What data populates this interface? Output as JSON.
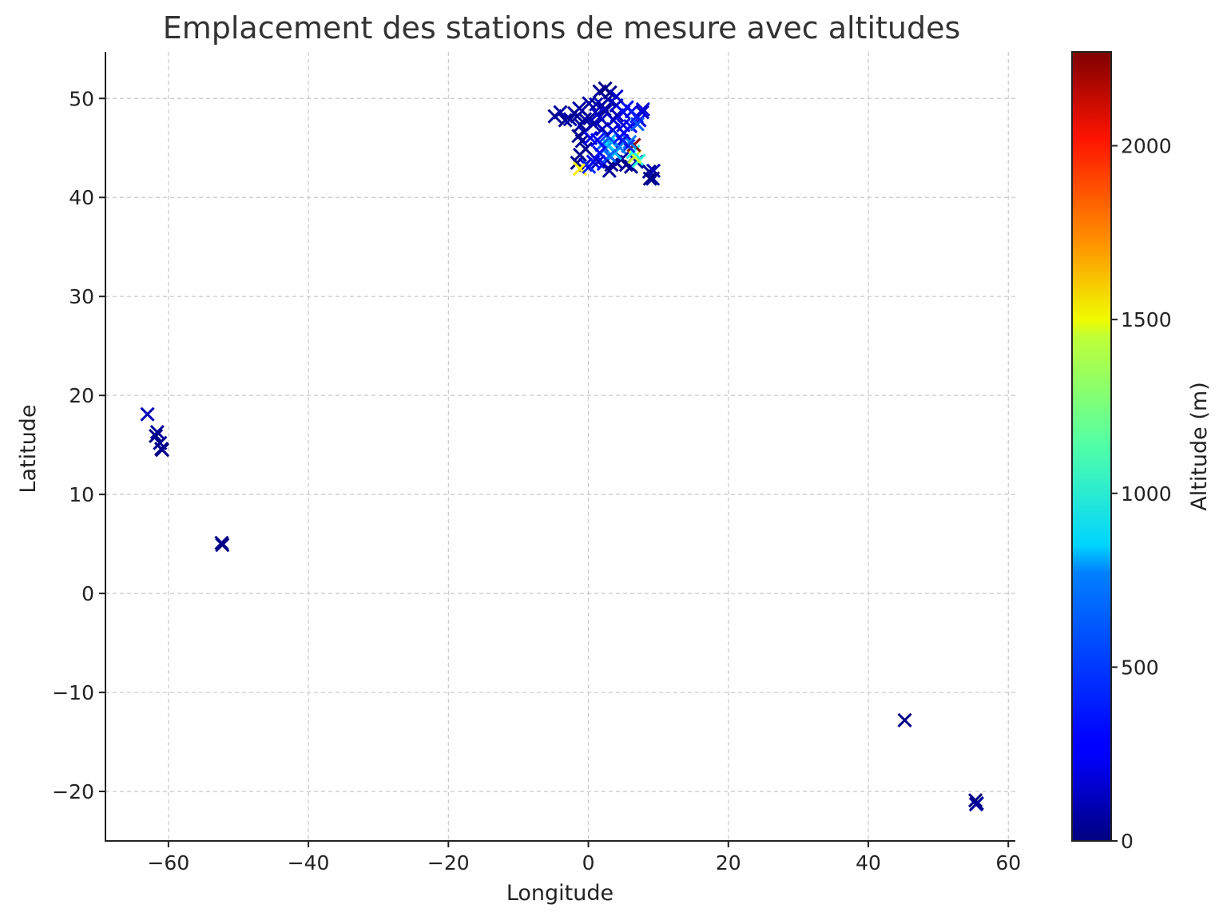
{
  "chart_data": {
    "type": "scatter",
    "title": "Emplacement des stations de mesure avec altitudes",
    "xlabel": "Longitude",
    "ylabel": "Latitude",
    "xlim": [
      -69,
      61
    ],
    "ylim": [
      -25,
      54.7
    ],
    "xticks": [
      -60,
      -40,
      -20,
      0,
      20,
      40,
      60
    ],
    "xtick_labels": [
      "−60",
      "−40",
      "−20",
      "0",
      "20",
      "40",
      "60"
    ],
    "yticks": [
      -20,
      -10,
      0,
      10,
      20,
      30,
      40,
      50
    ],
    "ytick_labels": [
      "−20",
      "−10",
      "0",
      "10",
      "20",
      "30",
      "40",
      "50"
    ],
    "grid": true,
    "marker": "x",
    "colormap": "jet",
    "colorbar": {
      "label": "Altitude (m)",
      "range": [
        0,
        2270
      ],
      "ticks": [
        0,
        500,
        1000,
        1500,
        2000
      ],
      "tick_labels": [
        "0",
        "500",
        "1000",
        "1500",
        "2000"
      ]
    },
    "points": [
      {
        "x": -63.0,
        "y": 18.1,
        "alt": 120
      },
      {
        "x": -61.6,
        "y": 16.3,
        "alt": 60
      },
      {
        "x": -61.8,
        "y": 15.9,
        "alt": 20
      },
      {
        "x": -61.2,
        "y": 15.2,
        "alt": 40
      },
      {
        "x": -61.0,
        "y": 14.6,
        "alt": 10
      },
      {
        "x": -60.9,
        "y": 14.5,
        "alt": 30
      },
      {
        "x": -52.4,
        "y": 5.1,
        "alt": 10
      },
      {
        "x": -52.3,
        "y": 4.9,
        "alt": 20
      },
      {
        "x": 45.2,
        "y": -12.8,
        "alt": 20
      },
      {
        "x": 55.3,
        "y": -20.9,
        "alt": 10
      },
      {
        "x": 55.5,
        "y": -21.2,
        "alt": 30
      },
      {
        "x": 55.4,
        "y": -21.3,
        "alt": 60
      },
      {
        "x": -4.8,
        "y": 48.2,
        "alt": 50
      },
      {
        "x": -4.0,
        "y": 48.6,
        "alt": 80
      },
      {
        "x": -3.3,
        "y": 47.8,
        "alt": 40
      },
      {
        "x": -2.6,
        "y": 47.9,
        "alt": 90
      },
      {
        "x": -1.6,
        "y": 48.2,
        "alt": 60
      },
      {
        "x": -1.1,
        "y": 47.3,
        "alt": 40
      },
      {
        "x": -0.6,
        "y": 46.6,
        "alt": 110
      },
      {
        "x": -1.4,
        "y": 46.2,
        "alt": 20
      },
      {
        "x": -0.9,
        "y": 45.7,
        "alt": 50
      },
      {
        "x": -0.4,
        "y": 44.9,
        "alt": 40
      },
      {
        "x": -1.2,
        "y": 44.3,
        "alt": 30
      },
      {
        "x": -1.6,
        "y": 43.5,
        "alt": 20
      },
      {
        "x": -0.4,
        "y": 43.3,
        "alt": 180
      },
      {
        "x": -1.2,
        "y": 42.9,
        "alt": 1450
      },
      {
        "x": 0.1,
        "y": 43.1,
        "alt": 380
      },
      {
        "x": 0.7,
        "y": 43.6,
        "alt": 260
      },
      {
        "x": 1.4,
        "y": 43.6,
        "alt": 150
      },
      {
        "x": 2.2,
        "y": 43.4,
        "alt": 300
      },
      {
        "x": 3.0,
        "y": 42.7,
        "alt": 60
      },
      {
        "x": 3.3,
        "y": 43.3,
        "alt": 40
      },
      {
        "x": 3.9,
        "y": 43.6,
        "alt": 30
      },
      {
        "x": 4.8,
        "y": 43.9,
        "alt": 60
      },
      {
        "x": 5.4,
        "y": 43.3,
        "alt": 40
      },
      {
        "x": 6.1,
        "y": 43.1,
        "alt": 30
      },
      {
        "x": 6.9,
        "y": 43.6,
        "alt": 100
      },
      {
        "x": 7.2,
        "y": 43.7,
        "alt": 950
      },
      {
        "x": 6.6,
        "y": 44.1,
        "alt": 1300
      },
      {
        "x": 6.4,
        "y": 44.6,
        "alt": 900
      },
      {
        "x": 6.5,
        "y": 45.3,
        "alt": 2250
      },
      {
        "x": 5.9,
        "y": 45.6,
        "alt": 560
      },
      {
        "x": 5.7,
        "y": 45.2,
        "alt": 400
      },
      {
        "x": 4.8,
        "y": 45.7,
        "alt": 200
      },
      {
        "x": 3.1,
        "y": 45.8,
        "alt": 650
      },
      {
        "x": 2.9,
        "y": 45.3,
        "alt": 780
      },
      {
        "x": 2.4,
        "y": 44.9,
        "alt": 620
      },
      {
        "x": 1.9,
        "y": 45.3,
        "alt": 480
      },
      {
        "x": 1.3,
        "y": 45.8,
        "alt": 300
      },
      {
        "x": 2.6,
        "y": 46.3,
        "alt": 430
      },
      {
        "x": 3.8,
        "y": 44.5,
        "alt": 700
      },
      {
        "x": 4.4,
        "y": 45.1,
        "alt": 550
      },
      {
        "x": 0.3,
        "y": 46.0,
        "alt": 250
      },
      {
        "x": 2.3,
        "y": 48.9,
        "alt": 60
      },
      {
        "x": 2.4,
        "y": 48.7,
        "alt": 80
      },
      {
        "x": 1.9,
        "y": 49.3,
        "alt": 120
      },
      {
        "x": 3.1,
        "y": 50.6,
        "alt": 30
      },
      {
        "x": 2.4,
        "y": 51.0,
        "alt": 10
      },
      {
        "x": 1.6,
        "y": 50.7,
        "alt": 40
      },
      {
        "x": 1.1,
        "y": 49.4,
        "alt": 100
      },
      {
        "x": 0.1,
        "y": 49.5,
        "alt": 70
      },
      {
        "x": -1.3,
        "y": 49.0,
        "alt": 90
      },
      {
        "x": 0.2,
        "y": 48.0,
        "alt": 60
      },
      {
        "x": 1.9,
        "y": 47.9,
        "alt": 130
      },
      {
        "x": 3.6,
        "y": 47.8,
        "alt": 180
      },
      {
        "x": 4.1,
        "y": 48.3,
        "alt": 120
      },
      {
        "x": 4.0,
        "y": 49.3,
        "alt": 150
      },
      {
        "x": 5.0,
        "y": 48.6,
        "alt": 220
      },
      {
        "x": 6.2,
        "y": 48.7,
        "alt": 250
      },
      {
        "x": 7.7,
        "y": 48.6,
        "alt": 150
      },
      {
        "x": 7.3,
        "y": 47.8,
        "alt": 260
      },
      {
        "x": 6.0,
        "y": 47.2,
        "alt": 300
      },
      {
        "x": 7.0,
        "y": 47.4,
        "alt": 480
      },
      {
        "x": 5.0,
        "y": 47.3,
        "alt": 220
      },
      {
        "x": 3.5,
        "y": 46.8,
        "alt": 200
      },
      {
        "x": 2.0,
        "y": 46.9,
        "alt": 130
      },
      {
        "x": 0.7,
        "y": 47.4,
        "alt": 90
      },
      {
        "x": 1.3,
        "y": 48.4,
        "alt": 150
      },
      {
        "x": 2.8,
        "y": 49.9,
        "alt": 70
      },
      {
        "x": 5.5,
        "y": 49.1,
        "alt": 300
      },
      {
        "x": 6.9,
        "y": 48.2,
        "alt": 350
      },
      {
        "x": 7.8,
        "y": 48.9,
        "alt": 200
      },
      {
        "x": 4.5,
        "y": 46.1,
        "alt": 350
      },
      {
        "x": 5.1,
        "y": 46.5,
        "alt": 260
      },
      {
        "x": 3.0,
        "y": 44.2,
        "alt": 500
      },
      {
        "x": 1.6,
        "y": 44.5,
        "alt": 280
      },
      {
        "x": -0.5,
        "y": 47.9,
        "alt": 70
      },
      {
        "x": -2.0,
        "y": 48.5,
        "alt": 50
      },
      {
        "x": 4.0,
        "y": 50.2,
        "alt": 170
      },
      {
        "x": 8.7,
        "y": 42.6,
        "alt": 40
      },
      {
        "x": 9.3,
        "y": 42.7,
        "alt": 120
      },
      {
        "x": 9.2,
        "y": 41.9,
        "alt": 60
      },
      {
        "x": 8.8,
        "y": 41.9,
        "alt": 20
      }
    ]
  }
}
